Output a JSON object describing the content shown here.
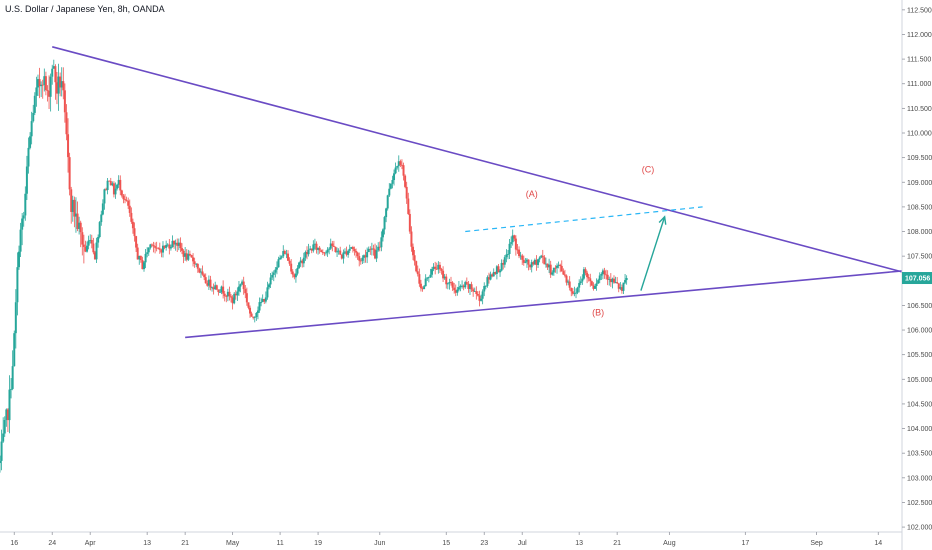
{
  "header": {
    "title": "U.S. Dollar / Japanese Yen, 8h, OANDA"
  },
  "colors": {
    "up": "#26a69a",
    "down": "#ef5350",
    "trendline": "#6a4bc4",
    "channel": "#29b6f6",
    "arrow": "#26a69a",
    "annotation": "#e04848",
    "price_tag": "#26a69a",
    "axis": "#d1d4dc"
  },
  "chart_data": {
    "type": "candlestick",
    "title": "U.S. Dollar / Japanese Yen, 8h, OANDA",
    "ylim": [
      101.9,
      112.7
    ],
    "y_ticks": [
      "112.500",
      "112.000",
      "111.500",
      "111.000",
      "110.500",
      "110.000",
      "109.500",
      "109.000",
      "108.500",
      "108.000",
      "107.500",
      "107.000",
      "106.500",
      "106.000",
      "105.500",
      "105.000",
      "104.500",
      "104.000",
      "103.500",
      "103.000",
      "102.500",
      "102.000"
    ],
    "x_ticks": [
      {
        "label": "16",
        "t": 0
      },
      {
        "label": "24",
        "t": 8
      },
      {
        "label": "Apr",
        "t": 16
      },
      {
        "label": "13",
        "t": 28
      },
      {
        "label": "21",
        "t": 36
      },
      {
        "label": "May",
        "t": 46
      },
      {
        "label": "11",
        "t": 56
      },
      {
        "label": "19",
        "t": 64
      },
      {
        "label": "Jun",
        "t": 77
      },
      {
        "label": "15",
        "t": 91
      },
      {
        "label": "23",
        "t": 99
      },
      {
        "label": "Jul",
        "t": 107
      },
      {
        "label": "13",
        "t": 119
      },
      {
        "label": "21",
        "t": 127
      },
      {
        "label": "Aug",
        "t": 138
      },
      {
        "label": "17",
        "t": 154
      },
      {
        "label": "Sep",
        "t": 169
      },
      {
        "label": "14",
        "t": 182
      }
    ],
    "xlim": [
      -3,
      187
    ],
    "current_price": "107.056",
    "current_value": 107.056,
    "anchors": [
      {
        "t": -3,
        "v": 103.3
      },
      {
        "t": -1,
        "v": 104.6
      },
      {
        "t": 0,
        "v": 105.8
      },
      {
        "t": 1,
        "v": 107.8
      },
      {
        "t": 2,
        "v": 108.3
      },
      {
        "t": 3,
        "v": 109.6
      },
      {
        "t": 4,
        "v": 110.5
      },
      {
        "t": 5,
        "v": 110.9
      },
      {
        "t": 6,
        "v": 111.2
      },
      {
        "t": 7,
        "v": 110.7
      },
      {
        "t": 8,
        "v": 111.4
      },
      {
        "t": 9,
        "v": 110.9
      },
      {
        "t": 10,
        "v": 111.1
      },
      {
        "t": 11,
        "v": 109.8
      },
      {
        "t": 12,
        "v": 108.6
      },
      {
        "t": 13,
        "v": 108.3
      },
      {
        "t": 14,
        "v": 107.9
      },
      {
        "t": 15,
        "v": 107.6
      },
      {
        "t": 16,
        "v": 107.9
      },
      {
        "t": 17,
        "v": 107.5
      },
      {
        "t": 18,
        "v": 108.2
      },
      {
        "t": 19,
        "v": 108.8
      },
      {
        "t": 20,
        "v": 109.1
      },
      {
        "t": 21,
        "v": 108.8
      },
      {
        "t": 22,
        "v": 109.0
      },
      {
        "t": 23,
        "v": 108.7
      },
      {
        "t": 24,
        "v": 108.5
      },
      {
        "t": 25,
        "v": 108.0
      },
      {
        "t": 26,
        "v": 107.5
      },
      {
        "t": 27,
        "v": 107.3
      },
      {
        "t": 28,
        "v": 107.6
      },
      {
        "t": 29,
        "v": 107.8
      },
      {
        "t": 30,
        "v": 107.6
      },
      {
        "t": 32,
        "v": 107.7
      },
      {
        "t": 34,
        "v": 107.8
      },
      {
        "t": 36,
        "v": 107.5
      },
      {
        "t": 38,
        "v": 107.4
      },
      {
        "t": 40,
        "v": 107.0
      },
      {
        "t": 42,
        "v": 106.9
      },
      {
        "t": 44,
        "v": 106.8
      },
      {
        "t": 46,
        "v": 106.6
      },
      {
        "t": 48,
        "v": 107.0
      },
      {
        "t": 49,
        "v": 106.6
      },
      {
        "t": 50,
        "v": 106.2
      },
      {
        "t": 51,
        "v": 106.4
      },
      {
        "t": 53,
        "v": 106.7
      },
      {
        "t": 55,
        "v": 107.3
      },
      {
        "t": 57,
        "v": 107.6
      },
      {
        "t": 59,
        "v": 107.1
      },
      {
        "t": 61,
        "v": 107.5
      },
      {
        "t": 63,
        "v": 107.7
      },
      {
        "t": 65,
        "v": 107.6
      },
      {
        "t": 67,
        "v": 107.7
      },
      {
        "t": 69,
        "v": 107.5
      },
      {
        "t": 71,
        "v": 107.7
      },
      {
        "t": 73,
        "v": 107.4
      },
      {
        "t": 75,
        "v": 107.7
      },
      {
        "t": 76,
        "v": 107.5
      },
      {
        "t": 77,
        "v": 107.7
      },
      {
        "t": 78,
        "v": 108.3
      },
      {
        "t": 79,
        "v": 108.9
      },
      {
        "t": 80,
        "v": 109.2
      },
      {
        "t": 81,
        "v": 109.5
      },
      {
        "t": 82,
        "v": 109.2
      },
      {
        "t": 83,
        "v": 108.3
      },
      {
        "t": 84,
        "v": 107.5
      },
      {
        "t": 85,
        "v": 107.1
      },
      {
        "t": 86,
        "v": 106.8
      },
      {
        "t": 87,
        "v": 107.1
      },
      {
        "t": 89,
        "v": 107.3
      },
      {
        "t": 91,
        "v": 107.0
      },
      {
        "t": 93,
        "v": 106.8
      },
      {
        "t": 95,
        "v": 106.9
      },
      {
        "t": 97,
        "v": 106.8
      },
      {
        "t": 98,
        "v": 106.6
      },
      {
        "t": 99,
        "v": 106.9
      },
      {
        "t": 101,
        "v": 107.2
      },
      {
        "t": 103,
        "v": 107.3
      },
      {
        "t": 104,
        "v": 107.6
      },
      {
        "t": 105,
        "v": 107.9
      },
      {
        "t": 106,
        "v": 107.6
      },
      {
        "t": 107,
        "v": 107.4
      },
      {
        "t": 109,
        "v": 107.3
      },
      {
        "t": 111,
        "v": 107.5
      },
      {
        "t": 113,
        "v": 107.2
      },
      {
        "t": 115,
        "v": 107.3
      },
      {
        "t": 117,
        "v": 106.9
      },
      {
        "t": 118,
        "v": 106.7
      },
      {
        "t": 120,
        "v": 107.2
      },
      {
        "t": 122,
        "v": 106.9
      },
      {
        "t": 124,
        "v": 107.2
      },
      {
        "t": 126,
        "v": 107.0
      },
      {
        "t": 128,
        "v": 106.8
      },
      {
        "t": 129,
        "v": 107.06
      }
    ],
    "drawings": {
      "upper_trendline": [
        {
          "t": 8,
          "v": 111.75
        },
        {
          "t": 187,
          "v": 107.18
        }
      ],
      "lower_trendline": [
        {
          "t": 36,
          "v": 105.85
        },
        {
          "t": 187,
          "v": 107.2
        }
      ],
      "dashed_channel": [
        {
          "t": 95,
          "v": 108.0
        },
        {
          "t": 145,
          "v": 108.5
        }
      ],
      "arrow": [
        {
          "t": 132,
          "v": 106.8
        },
        {
          "t": 137,
          "v": 108.3
        }
      ]
    },
    "annotations": [
      {
        "label": "(A)",
        "t": 109,
        "v": 108.7
      },
      {
        "label": "(B)",
        "t": 123,
        "v": 106.3
      },
      {
        "label": "(C)",
        "t": 133.5,
        "v": 109.2
      }
    ]
  }
}
